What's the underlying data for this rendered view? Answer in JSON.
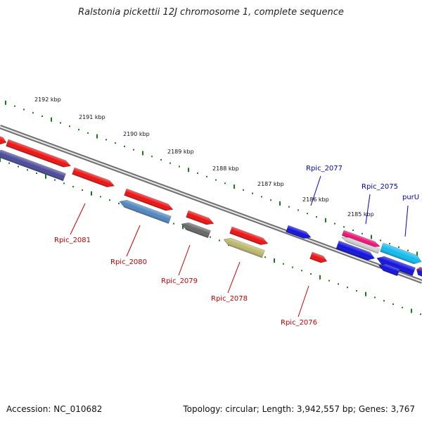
{
  "title": "Ralstonia pickettii 12J chromosome 1, complete sequence",
  "footer": {
    "accession": "Accession: NC_010682",
    "summary": "Topology: circular; Length: 3,942,557 bp; Genes: 3,767"
  },
  "scale_labels": [
    "2192 kbp",
    "2191 kbp",
    "2190 kbp",
    "2189 kbp",
    "2188 kbp",
    "2187 kbp",
    "2186 kbp",
    "2185 kbp"
  ],
  "genes": [
    {
      "id": "g_a",
      "label": "",
      "strand": "+",
      "color": "#ee1111",
      "label_color": ""
    },
    {
      "id": "g_b",
      "label": "",
      "strand": "+",
      "color": "#ee1111",
      "label_color": ""
    },
    {
      "id": "g_c",
      "label": "",
      "strand": "+",
      "color": "#ee1111",
      "label_color": ""
    },
    {
      "id": "g_d",
      "label": "",
      "strand": "+",
      "color": "#ee1111",
      "label_color": ""
    },
    {
      "id": "g_e",
      "label": "",
      "strand": "+",
      "color": "#ee1111",
      "label_color": ""
    },
    {
      "id": "g_f",
      "label": "",
      "strand": "+",
      "color": "#ee1111",
      "label_color": ""
    },
    {
      "id": "g_g",
      "label": "",
      "strand": "+",
      "color": "#ee1111",
      "label_color": ""
    },
    {
      "id": "g_h",
      "label": "Rpic_2077",
      "strand": "+",
      "color": "#1111dd",
      "label_color": "#0000cc"
    },
    {
      "id": "g_i",
      "label": "",
      "strand": "+",
      "color": "#ee1177",
      "label_color": ""
    },
    {
      "id": "g_j",
      "label": "purU",
      "strand": "+",
      "color": "#11bbee",
      "label_color": "#0000cc"
    },
    {
      "id": "g_k",
      "label": "",
      "strand": "+",
      "color": "#1111dd",
      "label_color": ""
    },
    {
      "id": "g_l",
      "label": "Rpic_2081",
      "strand": "-",
      "color": "#4a4a99",
      "label_color": "#cc0000"
    },
    {
      "id": "g_m",
      "label": "Rpic_2080",
      "strand": "-",
      "color": "#4f86c0",
      "label_color": "#cc0000"
    },
    {
      "id": "g_n",
      "label": "Rpic_2079",
      "strand": "-",
      "color": "#666666",
      "label_color": "#cc0000"
    },
    {
      "id": "g_o",
      "label": "Rpic_2078",
      "strand": "-",
      "color": "#bdb76b",
      "label_color": "#cc0000"
    },
    {
      "id": "g_p",
      "label": "Rpic_2076",
      "strand": "-",
      "color": "#ee1111",
      "label_color": "#cc0000"
    },
    {
      "id": "g_q",
      "label": "Rpic_2075",
      "strand": "-",
      "color": "#cfcfcf",
      "label_color": "#0000cc"
    },
    {
      "id": "g_r",
      "label": "",
      "strand": "-",
      "color": "#1111dd",
      "label_color": ""
    },
    {
      "id": "g_s",
      "label": "",
      "strand": "-",
      "color": "#1111dd",
      "label_color": ""
    },
    {
      "id": "g_t",
      "label": "",
      "strand": "-",
      "color": "#1111dd",
      "label_color": ""
    }
  ],
  "colors": {
    "backbone": "#8a8a8a",
    "tick": "#1a7a1a",
    "label_red": "#cc0000",
    "label_blue": "#0000cc"
  }
}
